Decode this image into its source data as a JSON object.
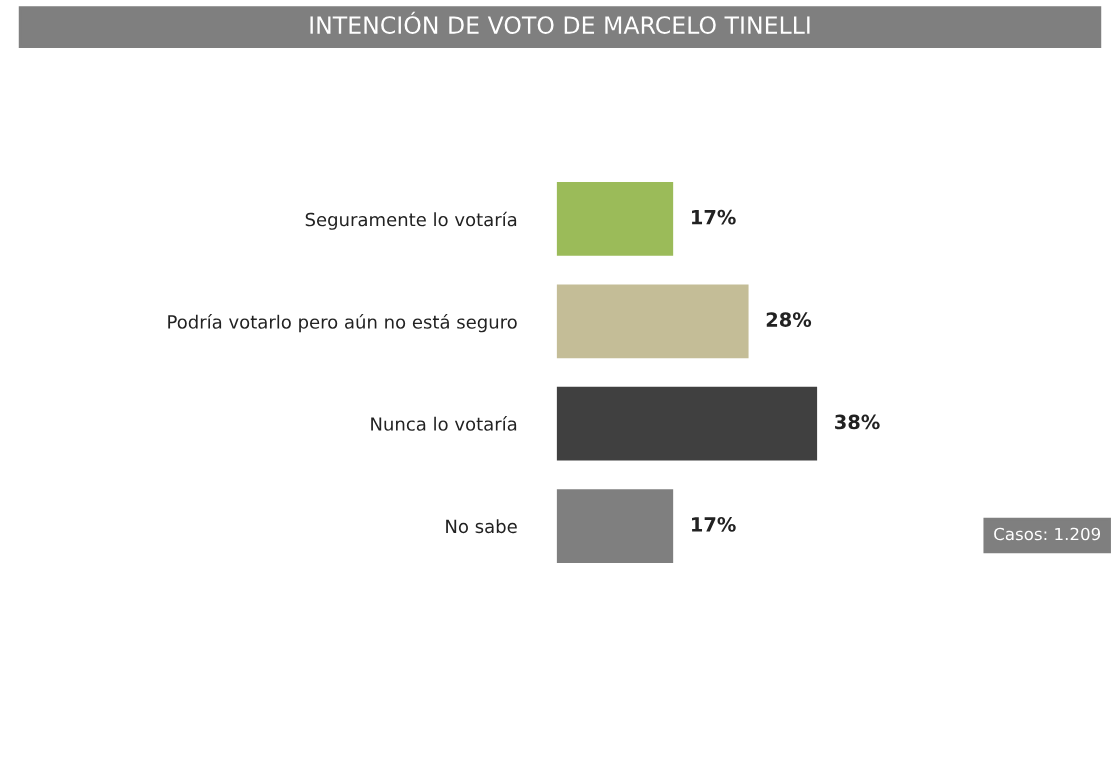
{
  "chart_data": {
    "type": "bar",
    "orientation": "horizontal",
    "title": "INTENCIÓN DE VOTO DE MARCELO TINELLI",
    "categories": [
      "Seguramente lo votaría",
      "Podría votarlo pero aún no está seguro",
      "Nunca lo votaría",
      "No sabe"
    ],
    "values": [
      17,
      28,
      38,
      17
    ],
    "colors": [
      "#9bbb59",
      "#c4bd97",
      "#404040",
      "#7f7f7f"
    ],
    "value_labels": [
      "17%",
      "28%",
      "38%",
      "17%"
    ],
    "annotations": [
      "Casos: 1.209"
    ],
    "grid": false,
    "legend": false
  }
}
